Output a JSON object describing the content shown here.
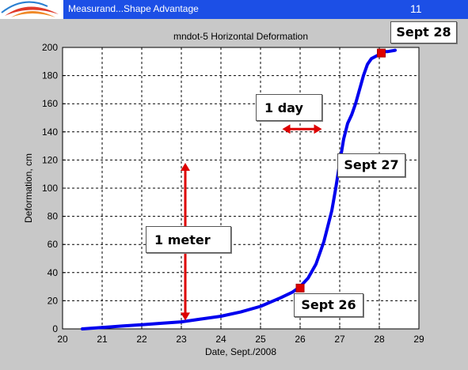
{
  "header": {
    "title": "Measurand...Shape Advantage",
    "page_number": "11",
    "background": "#1c4fe6"
  },
  "annotations": {
    "sept28": "Sept 28",
    "sept27": "Sept 27",
    "sept26": "Sept 26",
    "one_day": "1 day",
    "one_meter": "1 meter"
  },
  "chart_data": {
    "type": "line",
    "title": "mndot-5 Horizontal Deformation",
    "xlabel": "Date, Sept./2008",
    "ylabel": "Deformation, cm",
    "xlim": [
      20,
      29
    ],
    "ylim": [
      0,
      200
    ],
    "xticks": [
      20,
      21,
      22,
      23,
      24,
      25,
      26,
      27,
      28,
      29
    ],
    "yticks": [
      0,
      20,
      40,
      60,
      80,
      100,
      120,
      140,
      160,
      180,
      200
    ],
    "grid": true,
    "line_color": "#0000ee",
    "marker_color": "#dd0000",
    "arrow_color": "#dd0000",
    "series": [
      {
        "x": [
          20.5,
          21.0,
          21.5,
          22.0,
          22.5,
          23.0,
          23.5,
          24.0,
          24.5,
          25.0,
          25.5,
          25.8,
          26.0,
          26.2,
          26.4,
          26.6,
          26.8,
          26.9,
          27.0,
          27.1,
          27.2,
          27.3,
          27.4,
          27.5,
          27.6,
          27.7,
          27.8,
          28.0,
          28.1,
          28.2,
          28.4
        ],
        "y": [
          0,
          1,
          2,
          3,
          4,
          5,
          7,
          9,
          12,
          16,
          22,
          26,
          30,
          36,
          46,
          62,
          84,
          100,
          118,
          135,
          146,
          152,
          160,
          170,
          180,
          188,
          192,
          195,
          197,
          197,
          198
        ]
      }
    ],
    "markers": [
      {
        "x": 26.0,
        "y": 29
      },
      {
        "x": 28.05,
        "y": 196
      }
    ],
    "arrows": [
      {
        "orientation": "horizontal",
        "x": [
          25.55,
          26.55
        ],
        "y": 142
      },
      {
        "orientation": "vertical",
        "x": 23.1,
        "y": [
          6,
          118
        ]
      }
    ]
  }
}
